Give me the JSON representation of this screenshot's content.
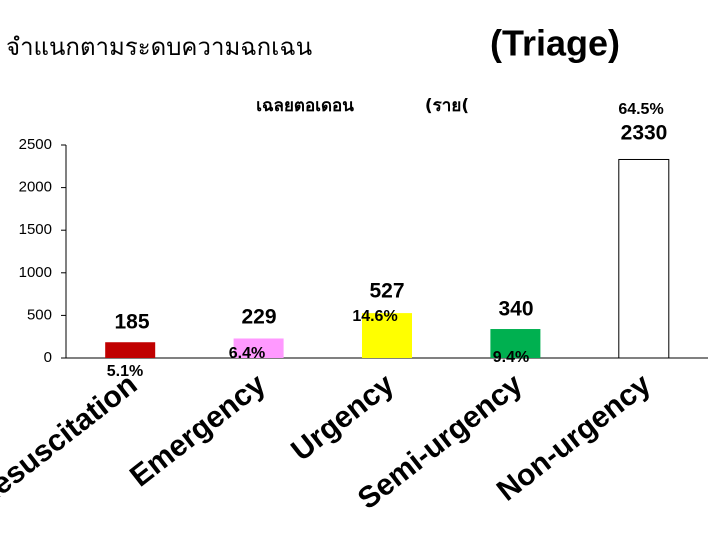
{
  "chart_data": {
    "type": "bar",
    "title": "จำแนกตามระดบความฉกเฉน",
    "title_suffix": "(Triage)",
    "subtitle": "เฉลยตอเดอน",
    "subtitle_unit": "(ราย(",
    "categories": [
      "Resuscitation",
      "Emergency",
      "Urgency",
      "Semi-urgency",
      "Non-urgency"
    ],
    "values": [
      185,
      229,
      527,
      340,
      2330
    ],
    "percent_labels": [
      "5.1%",
      "6.4%",
      "14.6%",
      "9.4%",
      "64.5%"
    ],
    "colors": [
      "#c00000",
      "#ff99ff",
      "#ffff00",
      "#00b050",
      "#ffffff"
    ],
    "ylim": [
      0,
      2500
    ],
    "yticks": [
      0,
      500,
      1000,
      1500,
      2000,
      2500
    ]
  }
}
